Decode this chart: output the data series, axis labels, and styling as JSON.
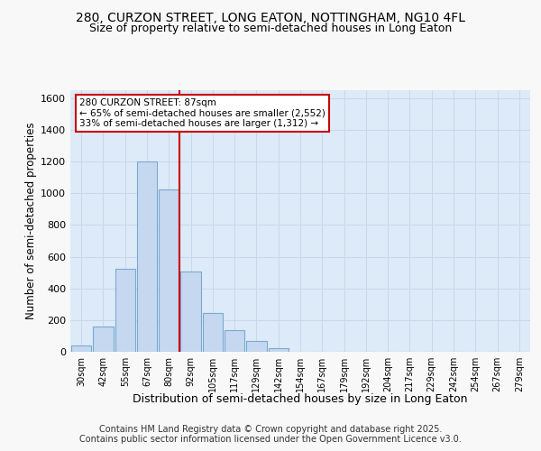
{
  "title_line1": "280, CURZON STREET, LONG EATON, NOTTINGHAM, NG10 4FL",
  "title_line2": "Size of property relative to semi-detached houses in Long Eaton",
  "xlabel": "Distribution of semi-detached houses by size in Long Eaton",
  "ylabel": "Number of semi-detached properties",
  "categories": [
    "30sqm",
    "42sqm",
    "55sqm",
    "67sqm",
    "80sqm",
    "92sqm",
    "105sqm",
    "117sqm",
    "129sqm",
    "142sqm",
    "154sqm",
    "167sqm",
    "179sqm",
    "192sqm",
    "204sqm",
    "217sqm",
    "229sqm",
    "242sqm",
    "254sqm",
    "267sqm",
    "279sqm"
  ],
  "values": [
    40,
    160,
    525,
    1200,
    1025,
    505,
    245,
    135,
    70,
    25,
    0,
    0,
    0,
    0,
    0,
    0,
    0,
    0,
    0,
    0,
    0
  ],
  "bar_color": "#c5d8f0",
  "bar_edge_color": "#7aaad0",
  "grid_color": "#c8d8ea",
  "bg_color": "#ddeaf7",
  "fig_bg_color": "#f8f8f8",
  "vline_x": 4.5,
  "vline_color": "#cc0000",
  "annotation_text": "280 CURZON STREET: 87sqm\n← 65% of semi-detached houses are smaller (2,552)\n33% of semi-detached houses are larger (1,312) →",
  "annotation_box_color": "white",
  "annotation_border_color": "#cc0000",
  "footer_text": "Contains HM Land Registry data © Crown copyright and database right 2025.\nContains public sector information licensed under the Open Government Licence v3.0.",
  "ylim": [
    0,
    1650
  ],
  "yticks": [
    0,
    200,
    400,
    600,
    800,
    1000,
    1200,
    1400,
    1600
  ]
}
